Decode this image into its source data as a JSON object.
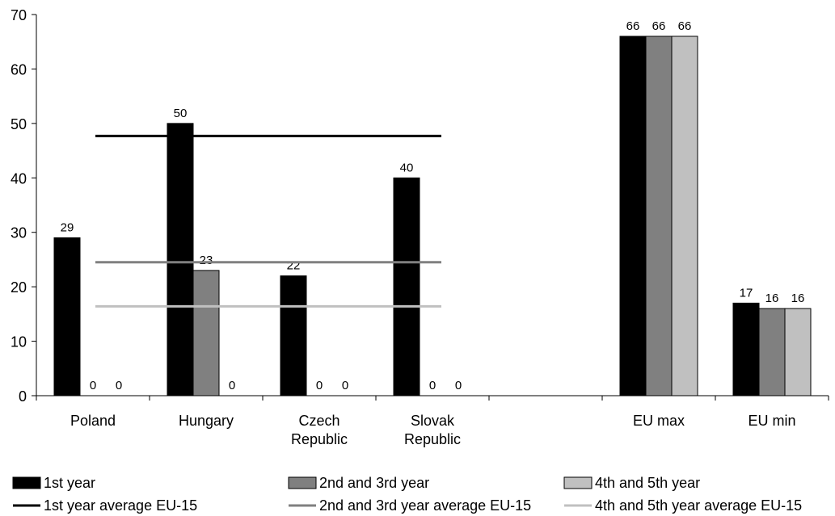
{
  "chart_data": {
    "type": "bar",
    "categories": [
      "Poland",
      "Hungary",
      "Czech\nRepublic",
      "Slovak\nRepublic",
      "",
      "EU max",
      "EU min"
    ],
    "ylim": [
      0,
      70
    ],
    "yticks": [
      0,
      10,
      20,
      30,
      40,
      50,
      60,
      70
    ],
    "grid": false,
    "legend_position": "bottom",
    "series": [
      {
        "name": "1st year",
        "values": [
          29,
          50,
          22,
          40,
          null,
          66,
          17
        ],
        "color": "#000000"
      },
      {
        "name": "2nd and 3rd year",
        "values": [
          0,
          23,
          0,
          0,
          null,
          66,
          16
        ],
        "color": "#808080"
      },
      {
        "name": "4th and 5th year",
        "values": [
          0,
          0,
          0,
          0,
          null,
          66,
          16
        ],
        "color": "#c0c0c0"
      }
    ],
    "reference_lines": [
      {
        "name": "1st year average EU-15",
        "value": 47.7,
        "color": "#000000"
      },
      {
        "name": "2nd and 3rd year average EU-15",
        "value": 24.5,
        "color": "#808080"
      },
      {
        "name": "4th and 5th year average EU-15",
        "value": 16.4,
        "color": "#c0c0c0"
      }
    ]
  }
}
